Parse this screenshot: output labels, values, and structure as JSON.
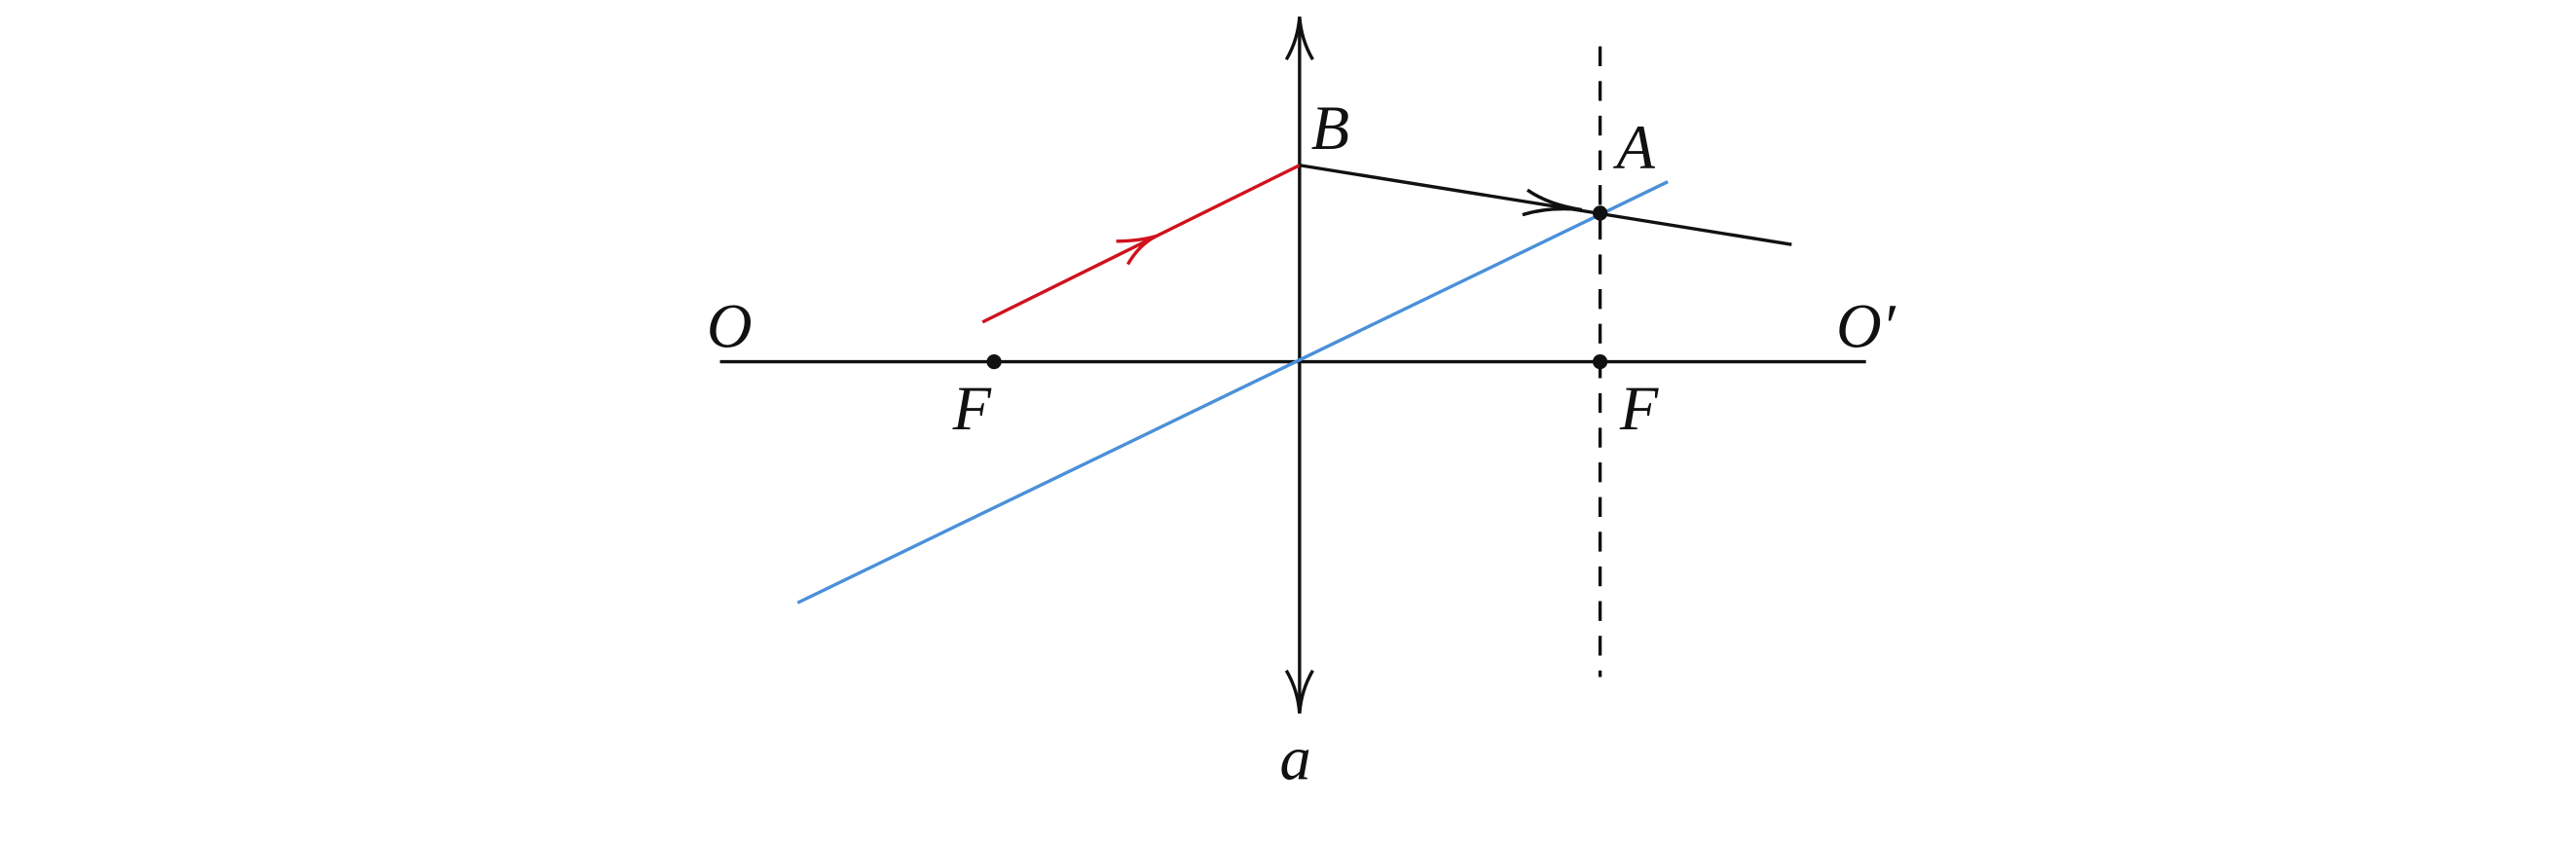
{
  "labels": {
    "o_left": "O",
    "o_right": "O′",
    "f_left": "F",
    "f_right": "F",
    "b": "B",
    "a_point": "A",
    "lens": "a"
  }
}
